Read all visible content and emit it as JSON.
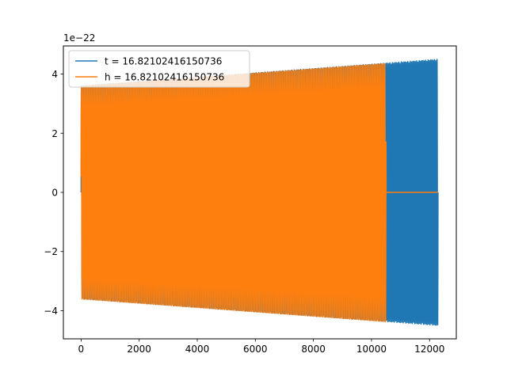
{
  "chart_data": {
    "type": "line",
    "title": "",
    "xlabel": "",
    "ylabel": "",
    "y_offset_label": "1e−22",
    "xlim": [
      -610,
      12920
    ],
    "ylim": [
      -4.95,
      4.95
    ],
    "x_ticks": [
      0,
      2000,
      4000,
      6000,
      8000,
      10000,
      12000
    ],
    "x_tick_labels": [
      "0",
      "2000",
      "4000",
      "6000",
      "8000",
      "10000",
      "12000"
    ],
    "y_ticks": [
      -4,
      -2,
      0,
      2,
      4
    ],
    "y_tick_labels": [
      "−4",
      "−2",
      "0",
      "2",
      "4"
    ],
    "grid": false,
    "legend_position": "top-left",
    "series": [
      {
        "name": "t = 16.82102416150736",
        "color": "#1f77b4",
        "x_start": 0,
        "x_end": 12290,
        "cycles": 280,
        "envelope_start": 3.6,
        "envelope_end": 4.5,
        "flat_after_x": null
      },
      {
        "name": "h = 16.82102416150736",
        "color": "#ff7f0e",
        "x_start": 0,
        "x_end": 12290,
        "cycles": 240,
        "envelope_start": 3.6,
        "envelope_end": 4.5,
        "flat_after_x": 10500
      }
    ]
  }
}
